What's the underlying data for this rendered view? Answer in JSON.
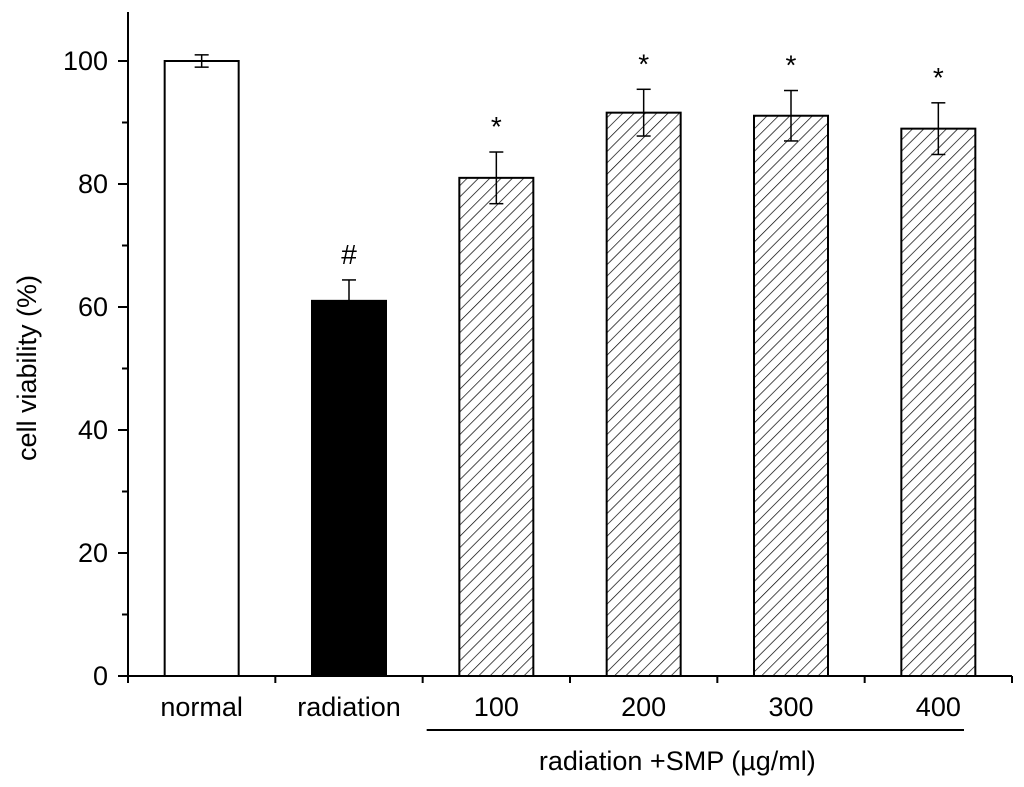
{
  "chart_data": {
    "type": "bar",
    "title": "",
    "xlabel": "",
    "ylabel": "cell viability (%)",
    "ylim": [
      0,
      108
    ],
    "yticks": [
      0,
      20,
      40,
      60,
      80,
      100
    ],
    "grid": false,
    "categories": [
      "normal",
      "radiation",
      "100",
      "200",
      "300",
      "400"
    ],
    "values": [
      100,
      61,
      81,
      91.6,
      91.1,
      89
    ],
    "errors": [
      1,
      3.4,
      4.2,
      3.8,
      4.1,
      4.2
    ],
    "fills": [
      "white",
      "black",
      "hatch",
      "hatch",
      "hatch",
      "hatch"
    ],
    "annotations": [
      "",
      "#",
      "*",
      "*",
      "*",
      "*"
    ],
    "group_label": "radiation +SMP (µg/ml)",
    "group_range": [
      2,
      5
    ]
  },
  "colors": {
    "axis": "#000000",
    "bar_white": "#ffffff",
    "bar_black": "#000000"
  }
}
